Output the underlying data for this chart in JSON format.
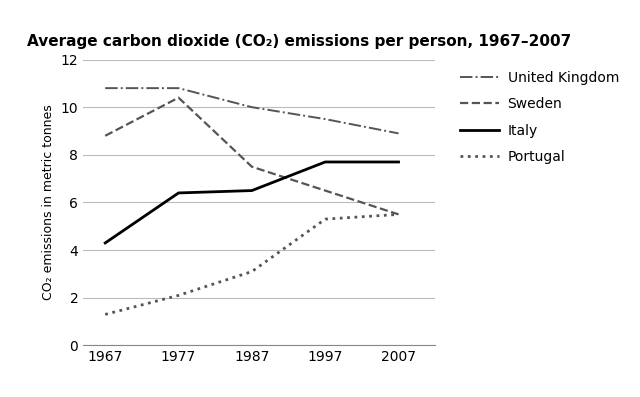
{
  "title": "Average carbon dioxide (CO₂) emissions per person, 1967–2007",
  "ylabel": "CO₂ emissions in metric tonnes",
  "years": [
    1967,
    1977,
    1987,
    1997,
    2007
  ],
  "series": {
    "United Kingdom": {
      "values": [
        10.8,
        10.8,
        10.0,
        9.5,
        8.9
      ],
      "linestyle": "dashdot",
      "linewidth": 1.4,
      "color": "#555555"
    },
    "Sweden": {
      "values": [
        8.8,
        10.4,
        7.5,
        6.5,
        5.5
      ],
      "linestyle": "dashed",
      "linewidth": 1.6,
      "color": "#555555"
    },
    "Italy": {
      "values": [
        4.3,
        6.4,
        6.5,
        7.7,
        7.7
      ],
      "linestyle": "solid",
      "linewidth": 2.0,
      "color": "#000000"
    },
    "Portugal": {
      "values": [
        1.3,
        2.1,
        3.1,
        5.3,
        5.5
      ],
      "linestyle": "dotted",
      "linewidth": 2.0,
      "color": "#555555"
    }
  },
  "ylim": [
    0,
    12
  ],
  "yticks": [
    0,
    2,
    4,
    6,
    8,
    10,
    12
  ],
  "xticks": [
    1967,
    1977,
    1987,
    1997,
    2007
  ],
  "xlim": [
    1964,
    2012
  ],
  "grid_color": "#bbbbbb",
  "background_color": "#ffffff",
  "title_fontsize": 11,
  "title_fontweight": "bold",
  "axis_label_fontsize": 9,
  "tick_fontsize": 10,
  "legend_fontsize": 10
}
